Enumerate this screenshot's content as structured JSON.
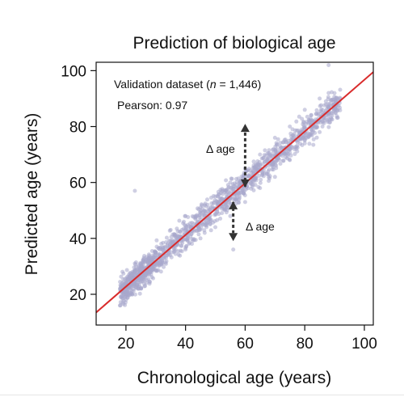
{
  "chart_data": {
    "type": "scatter",
    "title": "Prediction of biological age",
    "xlabel": "Chronological age (years)",
    "ylabel": "Predicted age (years)",
    "xlim": [
      10,
      103
    ],
    "ylim": [
      9,
      103
    ],
    "xticks": [
      20,
      40,
      60,
      80,
      100
    ],
    "yticks": [
      20,
      40,
      60,
      80,
      100
    ],
    "grid": false,
    "annotations": {
      "dataset_prefix": "Validation dataset (",
      "dataset_n": "n",
      "dataset_suffix": " = 1,446)",
      "pearson": "Pearson: 0.97",
      "delta_upper": "Δ age",
      "delta_lower": "Δ age"
    },
    "fit_line": {
      "x": [
        10,
        103
      ],
      "y": [
        13.5,
        99.5
      ]
    },
    "delta_arrows": [
      {
        "x": 60,
        "y_from": 58.5,
        "y_to": 81
      },
      {
        "x": 56,
        "y_from": 53,
        "y_to": 39
      }
    ],
    "series": [
      {
        "n": 1446,
        "point_color": "#a7a8cc",
        "sample_points": [
          [
            18,
            16
          ],
          [
            18,
            22
          ],
          [
            20,
            18
          ],
          [
            20,
            24
          ],
          [
            21,
            27
          ],
          [
            22,
            21
          ],
          [
            23,
            31
          ],
          [
            23,
            57
          ],
          [
            25,
            26
          ],
          [
            26,
            33
          ],
          [
            28,
            28
          ],
          [
            30,
            35
          ],
          [
            32,
            31
          ],
          [
            34,
            38
          ],
          [
            35,
            43
          ],
          [
            38,
            40
          ],
          [
            40,
            48
          ],
          [
            40,
            36
          ],
          [
            42,
            44
          ],
          [
            45,
            51
          ],
          [
            45,
            40
          ],
          [
            48,
            47
          ],
          [
            50,
            55
          ],
          [
            50,
            44
          ],
          [
            52,
            52
          ],
          [
            55,
            60
          ],
          [
            55,
            48
          ],
          [
            58,
            56
          ],
          [
            60,
            65
          ],
          [
            60,
            53
          ],
          [
            62,
            61
          ],
          [
            65,
            70
          ],
          [
            65,
            58
          ],
          [
            68,
            66
          ],
          [
            70,
            76
          ],
          [
            70,
            62
          ],
          [
            72,
            70
          ],
          [
            75,
            80
          ],
          [
            75,
            68
          ],
          [
            78,
            77
          ],
          [
            80,
            86
          ],
          [
            80,
            74
          ],
          [
            82,
            81
          ],
          [
            85,
            90
          ],
          [
            85,
            78
          ],
          [
            88,
            92
          ],
          [
            88,
            102
          ],
          [
            90,
            88
          ],
          [
            92,
            90
          ],
          [
            56,
            36
          ]
        ]
      }
    ],
    "colors": {
      "points": "#a7a8cc",
      "fit_line": "#d92b2b",
      "arrows": "#333333"
    }
  }
}
